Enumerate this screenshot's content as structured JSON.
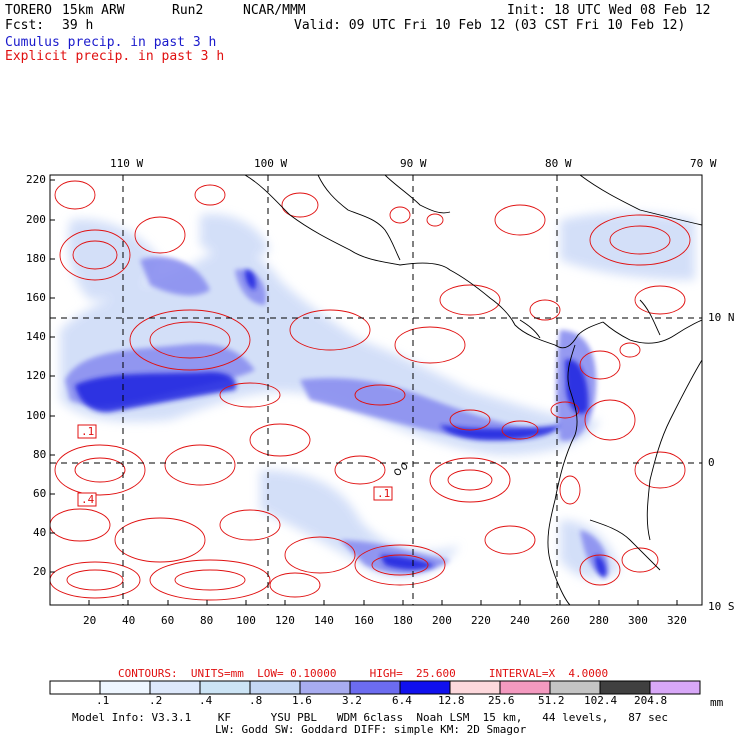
{
  "header": {
    "model_name": "TORERO",
    "resolution": "15km ARW",
    "run": "Run2",
    "org": "NCAR/MMM",
    "init": "Init: 18 UTC Wed 08 Feb 12",
    "fcst_label": "Fcst:",
    "fcst_value": "39 h",
    "valid": "Valid: 09 UTC Fri 10 Feb 12 (03 CST Fri 10 Feb 12)",
    "field1": "Cumulus precip. in past 3 h",
    "field2": "Explicit precip. in past 3 h"
  },
  "colors": {
    "field1": "#1a1acc",
    "field2": "#e01010",
    "contour": "#e01010",
    "land_outline": "#000000"
  },
  "map": {
    "lon_labels": [
      "110 W",
      "100 W",
      "90 W",
      "80 W",
      "70 W"
    ],
    "lat_labels": [
      "10 N",
      "0",
      "10 S"
    ],
    "y_ticks": [
      "220",
      "200",
      "180",
      "160",
      "140",
      "120",
      "100",
      "80",
      "60",
      "40",
      "20"
    ],
    "x_ticks": [
      "20",
      "40",
      "60",
      "80",
      "100",
      "120",
      "140",
      "160",
      "180",
      "200",
      "220",
      "240",
      "260",
      "280",
      "300",
      "320"
    ],
    "contour_labels": [
      ".1",
      ".4",
      ".1"
    ]
  },
  "footer": {
    "contours_line": "CONTOURS:  UNITS=mm  LOW= 0.10000     HIGH=  25.600     INTERVAL=X  4.0000",
    "colorbar_labels": [
      ".1",
      ".2",
      ".4",
      ".8",
      "1.6",
      "3.2",
      "6.4",
      "12.8",
      "25.6",
      "51.2",
      "102.4",
      "204.8"
    ],
    "colorbar_unit": "mm",
    "colorbar_colors": [
      "#ffffff",
      "#eef6ff",
      "#dde8fb",
      "#cce4f5",
      "#c4d6f3",
      "#a8acf0",
      "#6c6cf0",
      "#1010ee",
      "#fdd8dc",
      "#f49ac0",
      "#c4c4c4",
      "#404040",
      "#d8a8f8"
    ],
    "model_info": "Model Info: V3.3.1    KF      YSU PBL   WDM 6class  Noah LSM  15 km,   44 levels,   87 sec",
    "model_info2": "LW: Godd SW: Goddard DIFF: simple KM: 2D Smagor"
  }
}
